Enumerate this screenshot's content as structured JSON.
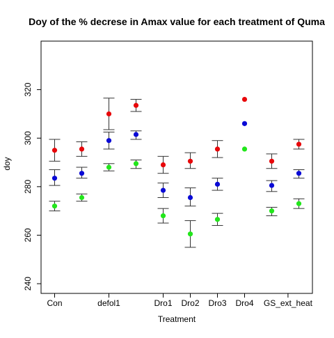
{
  "chart_data": {
    "type": "scatter",
    "title": "Doy of the % decrese in Amax value for each treatment of Quma",
    "xlabel": "Treatment",
    "ylabel": "doy",
    "xlim": [
      0.5,
      10.5
    ],
    "ylim": [
      236,
      340
    ],
    "yticks": [
      240,
      260,
      280,
      300,
      320
    ],
    "xticks": [
      {
        "x": 1,
        "label": "Con"
      },
      {
        "x": 3,
        "label": "defol1"
      },
      {
        "x": 5,
        "label": "Dro1"
      },
      {
        "x": 6,
        "label": "Dro2"
      },
      {
        "x": 7,
        "label": "Dro3"
      },
      {
        "x": 8,
        "label": "Dro4"
      },
      {
        "x": 9.6,
        "label": "GS_ext_heat"
      }
    ],
    "grid": false,
    "legend": "none",
    "series": [
      {
        "color": "#e8070a",
        "points": [
          {
            "x": 1,
            "y": 295,
            "lo": 290.5,
            "hi": 299.5
          },
          {
            "x": 2,
            "y": 295.5,
            "lo": 292.5,
            "hi": 298.5
          },
          {
            "x": 3,
            "y": 310,
            "lo": 303.5,
            "hi": 316.5
          },
          {
            "x": 4,
            "y": 313.5,
            "lo": 311,
            "hi": 316
          },
          {
            "x": 5,
            "y": 289,
            "lo": 285.5,
            "hi": 292.5
          },
          {
            "x": 6,
            "y": 290.5,
            "lo": 287.5,
            "hi": 294
          },
          {
            "x": 7,
            "y": 295.5,
            "lo": 292,
            "hi": 299
          },
          {
            "x": 8,
            "y": 316
          },
          {
            "x": 9,
            "y": 290.5,
            "lo": 287.5,
            "hi": 293.5
          },
          {
            "x": 10,
            "y": 297.5,
            "lo": 295.5,
            "hi": 299.5
          }
        ]
      },
      {
        "color": "#0a0ad6",
        "points": [
          {
            "x": 1,
            "y": 283.5,
            "lo": 280.5,
            "hi": 287
          },
          {
            "x": 2,
            "y": 285.5,
            "lo": 283.5,
            "hi": 288
          },
          {
            "x": 3,
            "y": 299,
            "lo": 295.5,
            "hi": 302.5
          },
          {
            "x": 4,
            "y": 301.5,
            "lo": 299.5,
            "hi": 303
          },
          {
            "x": 5,
            "y": 278.5,
            "lo": 275.5,
            "hi": 281.5
          },
          {
            "x": 6,
            "y": 275.5,
            "lo": 272,
            "hi": 279.5
          },
          {
            "x": 7,
            "y": 281,
            "lo": 278.5,
            "hi": 283.5
          },
          {
            "x": 8,
            "y": 306
          },
          {
            "x": 9,
            "y": 280.5,
            "lo": 278,
            "hi": 282.5
          },
          {
            "x": 10,
            "y": 285.5,
            "lo": 283.5,
            "hi": 287
          }
        ]
      },
      {
        "color": "#22e61b",
        "points": [
          {
            "x": 1,
            "y": 272,
            "lo": 270,
            "hi": 274
          },
          {
            "x": 2,
            "y": 275.5,
            "lo": 274,
            "hi": 277
          },
          {
            "x": 3,
            "y": 288,
            "lo": 286.5,
            "hi": 289.5
          },
          {
            "x": 4,
            "y": 289.5,
            "lo": 287.5,
            "hi": 291
          },
          {
            "x": 5,
            "y": 268,
            "lo": 265,
            "hi": 271
          },
          {
            "x": 6,
            "y": 260.5,
            "lo": 255,
            "hi": 266
          },
          {
            "x": 7,
            "y": 266.5,
            "lo": 264,
            "hi": 269
          },
          {
            "x": 8,
            "y": 295.5
          },
          {
            "x": 9,
            "y": 270,
            "lo": 268,
            "hi": 271.5
          },
          {
            "x": 10,
            "y": 273,
            "lo": 271,
            "hi": 275
          }
        ]
      }
    ]
  }
}
